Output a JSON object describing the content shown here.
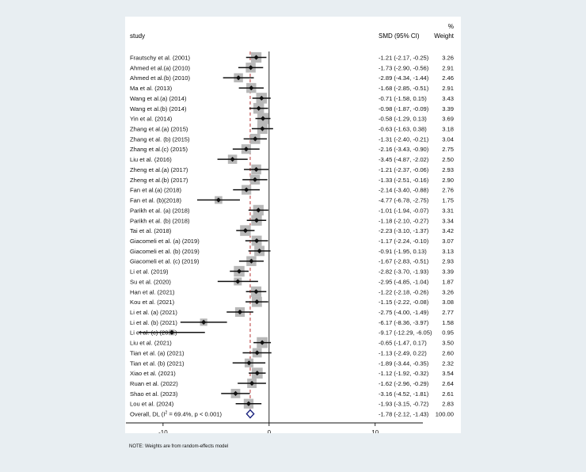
{
  "chart_data": {
    "type": "forest",
    "header": {
      "study_label": "study",
      "effect_label": "SMD (95% CI)",
      "weight_label_top": "%",
      "weight_label_bottom": "Weight"
    },
    "xaxis": {
      "range": [
        -13.5,
        14.5
      ],
      "ticks": [
        -10,
        0,
        10
      ],
      "tick_labels": [
        "-10",
        "0",
        "10"
      ]
    },
    "studies": [
      {
        "name": "Frautschy et al. (2001)",
        "smd": -1.21,
        "lo": -2.17,
        "hi": -0.25,
        "ci_text": "-1.21 (-2.17, -0.25)",
        "weight": "3.26"
      },
      {
        "name": "Ahmed et al.(a) (2010)",
        "smd": -1.73,
        "lo": -2.9,
        "hi": -0.56,
        "ci_text": "-1.73 (-2.90, -0.56)",
        "weight": "2.91"
      },
      {
        "name": "Ahmed et al.(b) (2010)",
        "smd": -2.89,
        "lo": -4.34,
        "hi": -1.44,
        "ci_text": "-2.89 (-4.34, -1.44)",
        "weight": "2.46"
      },
      {
        "name": "Ma et al. (2013)",
        "smd": -1.68,
        "lo": -2.85,
        "hi": -0.51,
        "ci_text": "-1.68 (-2.85, -0.51)",
        "weight": "2.91"
      },
      {
        "name": "Wang et al.(a) (2014)",
        "smd": -0.71,
        "lo": -1.58,
        "hi": 0.15,
        "ci_text": "-0.71 (-1.58, 0.15)",
        "weight": "3.43"
      },
      {
        "name": "Wang et al.(b) (2014)",
        "smd": -0.98,
        "lo": -1.87,
        "hi": -0.09,
        "ci_text": "-0.98 (-1.87, -0.09)",
        "weight": "3.39"
      },
      {
        "name": "Yin et al. (2014)",
        "smd": -0.58,
        "lo": -1.29,
        "hi": 0.13,
        "ci_text": "-0.58 (-1.29, 0.13)",
        "weight": "3.69"
      },
      {
        "name": "Zhang et al.(a) (2015)",
        "smd": -0.63,
        "lo": -1.63,
        "hi": 0.38,
        "ci_text": "-0.63 (-1.63, 0.38)",
        "weight": "3.18"
      },
      {
        "name": "Zhang et al. (b) (2015)",
        "smd": -1.31,
        "lo": -2.4,
        "hi": -0.21,
        "ci_text": "-1.31 (-2.40, -0.21)",
        "weight": "3.04"
      },
      {
        "name": "Zhang et al.(c) (2015)",
        "smd": -2.16,
        "lo": -3.43,
        "hi": -0.9,
        "ci_text": "-2.16 (-3.43, -0.90)",
        "weight": "2.75"
      },
      {
        "name": "Liu et al. (2016)",
        "smd": -3.45,
        "lo": -4.87,
        "hi": -2.02,
        "ci_text": "-3.45 (-4.87, -2.02)",
        "weight": "2.50"
      },
      {
        "name": "Zheng et al.(a) (2017)",
        "smd": -1.21,
        "lo": -2.37,
        "hi": -0.06,
        "ci_text": "-1.21 (-2.37, -0.06)",
        "weight": "2.93"
      },
      {
        "name": "Zheng et al.(b) (2017)",
        "smd": -1.33,
        "lo": -2.51,
        "hi": -0.16,
        "ci_text": "-1.33 (-2.51, -0.16)",
        "weight": "2.90"
      },
      {
        "name": "Fan et al.(a) (2018)",
        "smd": -2.14,
        "lo": -3.4,
        "hi": -0.88,
        "ci_text": "-2.14 (-3.40, -0.88)",
        "weight": "2.76"
      },
      {
        "name": "Fan et al. (b)(2018)",
        "smd": -4.77,
        "lo": -6.78,
        "hi": -2.75,
        "ci_text": "-4.77 (-6.78, -2.75)",
        "weight": "1.75"
      },
      {
        "name": "Parikh et al. (a) (2018)",
        "smd": -1.01,
        "lo": -1.94,
        "hi": -0.07,
        "ci_text": "-1.01 (-1.94, -0.07)",
        "weight": "3.31"
      },
      {
        "name": "Parikh et al. (b) (2018)",
        "smd": -1.18,
        "lo": -2.1,
        "hi": -0.27,
        "ci_text": "-1.18 (-2.10, -0.27)",
        "weight": "3.34"
      },
      {
        "name": "Tai et al. (2018)",
        "smd": -2.23,
        "lo": -3.1,
        "hi": -1.37,
        "ci_text": "-2.23 (-3.10, -1.37)",
        "weight": "3.42"
      },
      {
        "name": "Giacomeli et al. (a) (2019)",
        "smd": -1.17,
        "lo": -2.24,
        "hi": -0.1,
        "ci_text": "-1.17 (-2.24, -0.10)",
        "weight": "3.07"
      },
      {
        "name": "Giacomeli et al. (b) (2019)",
        "smd": -0.91,
        "lo": -1.95,
        "hi": 0.13,
        "ci_text": "-0.91 (-1.95, 0.13)",
        "weight": "3.13"
      },
      {
        "name": "Giacomeli et al. (c) (2019)",
        "smd": -1.67,
        "lo": -2.83,
        "hi": -0.51,
        "ci_text": "-1.67 (-2.83, -0.51)",
        "weight": "2.93"
      },
      {
        "name": "Li et al. (2019)",
        "smd": -2.82,
        "lo": -3.7,
        "hi": -1.93,
        "ci_text": "-2.82 (-3.70, -1.93)",
        "weight": "3.39"
      },
      {
        "name": "Su et al. (2020)",
        "smd": -2.95,
        "lo": -4.85,
        "hi": -1.04,
        "ci_text": "-2.95 (-4.85, -1.04)",
        "weight": "1.87"
      },
      {
        "name": "Han et al. (2021)",
        "smd": -1.22,
        "lo": -2.18,
        "hi": -0.26,
        "ci_text": "-1.22 (-2.18, -0.26)",
        "weight": "3.26"
      },
      {
        "name": "Kou et al. (2021)",
        "smd": -1.15,
        "lo": -2.22,
        "hi": -0.08,
        "ci_text": "-1.15 (-2.22, -0.08)",
        "weight": "3.08"
      },
      {
        "name": "Li et al. (a) (2021)",
        "smd": -2.75,
        "lo": -4.0,
        "hi": -1.49,
        "ci_text": "-2.75 (-4.00, -1.49)",
        "weight": "2.77"
      },
      {
        "name": "Li et al. (b) (2021)",
        "smd": -6.17,
        "lo": -8.36,
        "hi": -3.97,
        "ci_text": "-6.17 (-8.36, -3.97)",
        "weight": "1.58"
      },
      {
        "name": "Li et al. (c) (2021)",
        "smd": -9.17,
        "lo": -12.29,
        "hi": -6.05,
        "ci_text": "-9.17 (-12.29, -6.05)",
        "weight": "0.95"
      },
      {
        "name": "Liu et al. (2021)",
        "smd": -0.65,
        "lo": -1.47,
        "hi": 0.17,
        "ci_text": "-0.65 (-1.47, 0.17)",
        "weight": "3.50"
      },
      {
        "name": "Tian et al. (a) (2021)",
        "smd": -1.13,
        "lo": -2.49,
        "hi": 0.22,
        "ci_text": "-1.13 (-2.49, 0.22)",
        "weight": "2.60"
      },
      {
        "name": "Tian et al. (b) (2021)",
        "smd": -1.89,
        "lo": -3.44,
        "hi": -0.35,
        "ci_text": "-1.89 (-3.44, -0.35)",
        "weight": "2.32"
      },
      {
        "name": "Xiao et al. (2021)",
        "smd": -1.12,
        "lo": -1.92,
        "hi": -0.32,
        "ci_text": "-1.12 (-1.92, -0.32)",
        "weight": "3.54"
      },
      {
        "name": "Ruan et al. (2022)",
        "smd": -1.62,
        "lo": -2.96,
        "hi": -0.29,
        "ci_text": "-1.62 (-2.96, -0.29)",
        "weight": "2.64"
      },
      {
        "name": "Shao et al. (2023)",
        "smd": -3.16,
        "lo": -4.52,
        "hi": -1.81,
        "ci_text": "-3.16 (-4.52, -1.81)",
        "weight": "2.61"
      },
      {
        "name": "Lou et al. (2024)",
        "smd": -1.93,
        "lo": -3.15,
        "hi": -0.72,
        "ci_text": "-1.93 (-3.15, -0.72)",
        "weight": "2.83"
      }
    ],
    "overall": {
      "label_prefix": "Overall, DL (I",
      "label_sup": "2",
      "label_suffix": " = 69.4%, p < 0.001)",
      "smd": -1.78,
      "lo": -2.12,
      "hi": -1.43,
      "ci_text": "-1.78 (-2.12, -1.43)",
      "weight": "100.00"
    },
    "note": "NOTE: Weights are from random-effects model",
    "colors": {
      "background": "#e8eef2",
      "panel": "#ffffff",
      "marker": "#111111",
      "box": "#b8b8b8",
      "diamond": "#1a237e",
      "overall_line": "#b02020"
    }
  }
}
